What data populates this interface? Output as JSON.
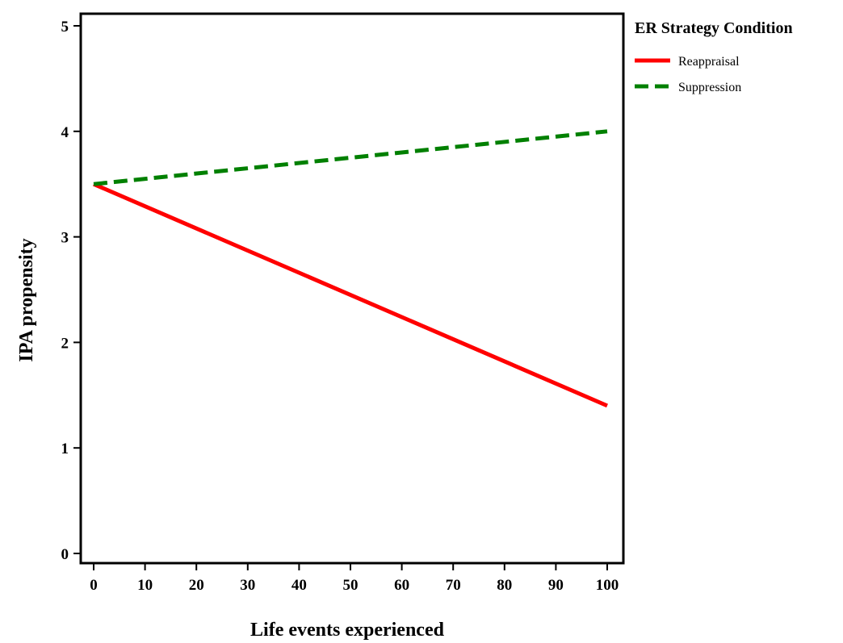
{
  "chart_data": {
    "type": "line",
    "title": "",
    "xlabel": "Life events experienced",
    "ylabel": "IPA propensity",
    "xlim": [
      0,
      100
    ],
    "ylim": [
      0,
      5
    ],
    "x_ticks": [
      0,
      10,
      20,
      30,
      40,
      50,
      60,
      70,
      80,
      90,
      100
    ],
    "y_ticks": [
      0,
      1,
      2,
      3,
      4,
      5
    ],
    "grid": false,
    "legend": {
      "title": "ER Strategy Condition",
      "placement": "right-top"
    },
    "series": [
      {
        "name": "Reappraisal",
        "x": [
          0,
          100
        ],
        "y": [
          3.5,
          1.4
        ],
        "color": "#ff0000",
        "style": "solid"
      },
      {
        "name": "Suppression",
        "x": [
          0,
          100
        ],
        "y": [
          3.5,
          4.0
        ],
        "color": "#008000",
        "style": "dashed"
      }
    ]
  }
}
